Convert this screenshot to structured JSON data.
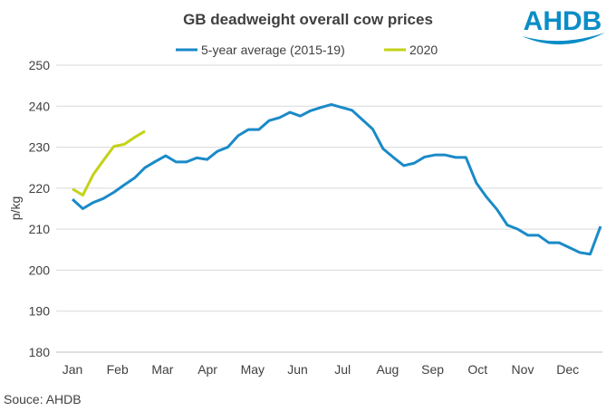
{
  "logo": {
    "text": "AHDB",
    "color": "#0a8dc7"
  },
  "source": "Souce: AHDB",
  "chart_data": {
    "type": "line",
    "title": "GB deadweight overall cow prices",
    "xlabel": "",
    "ylabel": "p/kg",
    "ylim": [
      180,
      250
    ],
    "yticks": [
      180,
      190,
      200,
      210,
      220,
      230,
      240,
      250
    ],
    "xtick_labels": [
      "Jan",
      "Feb",
      "Mar",
      "Apr",
      "May",
      "Jun",
      "Jul",
      "Aug",
      "Sep",
      "Oct",
      "Nov",
      "Dec"
    ],
    "x_unit": "week",
    "grid": true,
    "legend_position": "top",
    "series": [
      {
        "name": "5-year average (2015-19)",
        "color": "#1a8ac8",
        "values": [
          217.3,
          215,
          216.5,
          217.5,
          219,
          220.8,
          222.5,
          225,
          226.5,
          227.9,
          226.4,
          226.4,
          227.4,
          227,
          229,
          230,
          232.8,
          234.3,
          234.3,
          236.5,
          237.2,
          238.5,
          237.6,
          238.9,
          239.7,
          240.4,
          239.7,
          239,
          236.7,
          234.4,
          229.6,
          227.5,
          225.5,
          226.1,
          227.6,
          228.1,
          228.1,
          227.5,
          227.5,
          221.3,
          217.8,
          214.8,
          211,
          210,
          208.5,
          208.5,
          206.7,
          206.7,
          205.5,
          204.3,
          203.9,
          210.7
        ]
      },
      {
        "name": "2020",
        "color": "#c4d217",
        "values": [
          219.8,
          218.3,
          223.3,
          226.8,
          230.2,
          230.7,
          232.4,
          233.9
        ]
      }
    ]
  }
}
